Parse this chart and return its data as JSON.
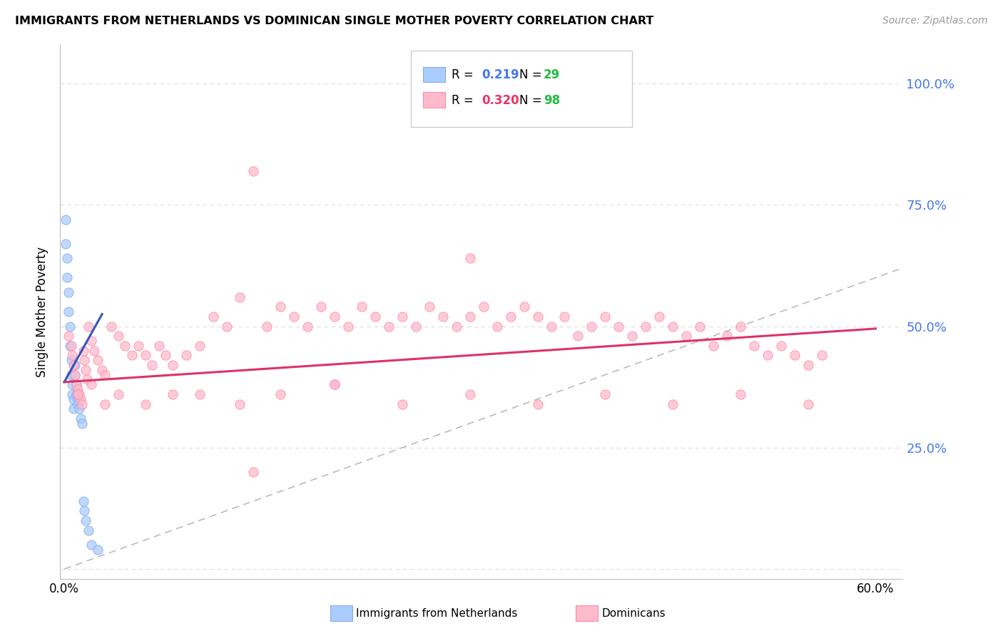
{
  "title": "IMMIGRANTS FROM NETHERLANDS VS DOMINICAN SINGLE MOTHER POVERTY CORRELATION CHART",
  "source": "Source: ZipAtlas.com",
  "ylabel": "Single Mother Poverty",
  "xlim": [
    -0.003,
    0.62
  ],
  "ylim": [
    -0.02,
    1.08
  ],
  "ytick_vals": [
    0.0,
    0.25,
    0.5,
    0.75,
    1.0
  ],
  "ytick_labels": [
    "",
    "25.0%",
    "50.0%",
    "75.0%",
    "100.0%"
  ],
  "xtick_vals": [
    0.0,
    0.1,
    0.2,
    0.3,
    0.4,
    0.5,
    0.6
  ],
  "xtick_labels": [
    "0.0%",
    "",
    "",
    "",
    "",
    "",
    "60.0%"
  ],
  "scatter_blue_color": "#AACCFF",
  "scatter_blue_edge": "#88AADD",
  "scatter_pink_color": "#FFBBCC",
  "scatter_pink_edge": "#FF88AA",
  "trend_blue_color": "#3355BB",
  "trend_pink_color": "#DD3366",
  "diag_color": "#BBBBBB",
  "grid_color": "#DDDDDD",
  "right_tick_color": "#4477EE",
  "legend_R_blue_color": "#4477EE",
  "legend_N_blue_color": "#22BB44",
  "legend_R_pink_color": "#EE3366",
  "legend_N_pink_color": "#22BB44",
  "blue_x": [
    0.001,
    0.001,
    0.002,
    0.002,
    0.003,
    0.003,
    0.004,
    0.004,
    0.005,
    0.005,
    0.006,
    0.006,
    0.007,
    0.007,
    0.008,
    0.008,
    0.009,
    0.009,
    0.01,
    0.01,
    0.011,
    0.012,
    0.013,
    0.014,
    0.015,
    0.016,
    0.018,
    0.02,
    0.025
  ],
  "blue_y": [
    0.72,
    0.67,
    0.64,
    0.6,
    0.57,
    0.53,
    0.5,
    0.46,
    0.43,
    0.4,
    0.38,
    0.36,
    0.35,
    0.33,
    0.42,
    0.4,
    0.38,
    0.36,
    0.35,
    0.34,
    0.33,
    0.31,
    0.3,
    0.14,
    0.12,
    0.1,
    0.08,
    0.05,
    0.04
  ],
  "pink_x": [
    0.003,
    0.005,
    0.006,
    0.007,
    0.008,
    0.009,
    0.01,
    0.011,
    0.012,
    0.013,
    0.014,
    0.015,
    0.016,
    0.017,
    0.018,
    0.02,
    0.022,
    0.025,
    0.028,
    0.03,
    0.035,
    0.04,
    0.045,
    0.05,
    0.055,
    0.06,
    0.065,
    0.07,
    0.075,
    0.08,
    0.09,
    0.1,
    0.11,
    0.12,
    0.13,
    0.14,
    0.15,
    0.16,
    0.17,
    0.18,
    0.19,
    0.2,
    0.21,
    0.22,
    0.23,
    0.24,
    0.25,
    0.26,
    0.27,
    0.28,
    0.29,
    0.3,
    0.31,
    0.32,
    0.33,
    0.34,
    0.35,
    0.36,
    0.37,
    0.38,
    0.39,
    0.4,
    0.41,
    0.42,
    0.43,
    0.44,
    0.45,
    0.46,
    0.47,
    0.48,
    0.49,
    0.5,
    0.51,
    0.52,
    0.53,
    0.54,
    0.55,
    0.56,
    0.01,
    0.02,
    0.03,
    0.04,
    0.06,
    0.08,
    0.1,
    0.13,
    0.16,
    0.2,
    0.25,
    0.3,
    0.35,
    0.4,
    0.45,
    0.5,
    0.55,
    0.3,
    0.2,
    0.14
  ],
  "pink_y": [
    0.48,
    0.46,
    0.44,
    0.42,
    0.4,
    0.38,
    0.37,
    0.36,
    0.35,
    0.34,
    0.45,
    0.43,
    0.41,
    0.39,
    0.5,
    0.47,
    0.45,
    0.43,
    0.41,
    0.4,
    0.5,
    0.48,
    0.46,
    0.44,
    0.46,
    0.44,
    0.42,
    0.46,
    0.44,
    0.42,
    0.44,
    0.46,
    0.52,
    0.5,
    0.56,
    0.82,
    0.5,
    0.54,
    0.52,
    0.5,
    0.54,
    0.52,
    0.5,
    0.54,
    0.52,
    0.5,
    0.52,
    0.5,
    0.54,
    0.52,
    0.5,
    0.52,
    0.54,
    0.5,
    0.52,
    0.54,
    0.52,
    0.5,
    0.52,
    0.48,
    0.5,
    0.52,
    0.5,
    0.48,
    0.5,
    0.52,
    0.5,
    0.48,
    0.5,
    0.46,
    0.48,
    0.5,
    0.46,
    0.44,
    0.46,
    0.44,
    0.42,
    0.44,
    0.36,
    0.38,
    0.34,
    0.36,
    0.34,
    0.36,
    0.36,
    0.34,
    0.36,
    0.38,
    0.34,
    0.36,
    0.34,
    0.36,
    0.34,
    0.36,
    0.34,
    0.64,
    0.38,
    0.2
  ],
  "blue_trend_x": [
    0.0,
    0.028
  ],
  "blue_trend_y": [
    0.385,
    0.525
  ],
  "pink_trend_x": [
    0.0,
    0.6
  ],
  "pink_trend_y": [
    0.385,
    0.495
  ]
}
